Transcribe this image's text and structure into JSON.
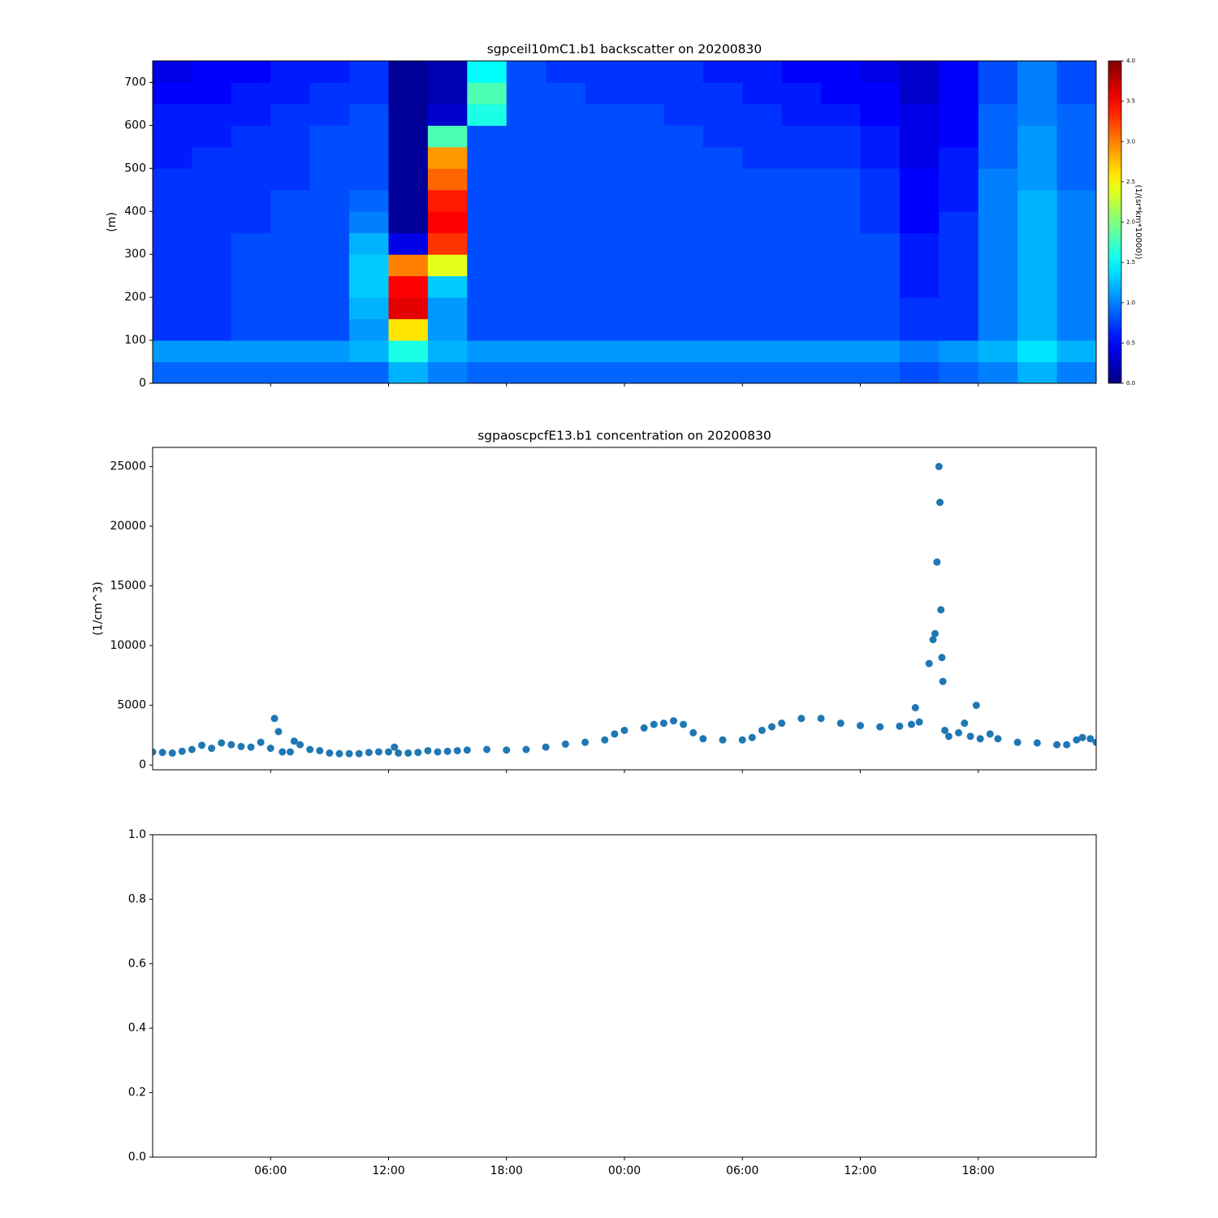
{
  "chart_data": [
    {
      "type": "heatmap",
      "title": "sgpceil10mC1.b1 backscatter on 20200830",
      "ylabel": "(m)",
      "colorbar_label": "(1/(sr*km*10000))",
      "colormap": "jet",
      "clim": [
        0,
        4
      ],
      "colorbar_ticks": [
        {
          "value": 0,
          "label": "0.0"
        },
        0.5,
        {
          "value": 1,
          "label": "1.0"
        },
        1.5,
        {
          "value": 2,
          "label": "2.0"
        },
        2.5,
        {
          "value": 3,
          "label": "3.0"
        },
        3.5,
        {
          "value": 4,
          "label": "4.0"
        }
      ],
      "xlim": [
        0,
        48
      ],
      "ylim": [
        0,
        750
      ],
      "yticks": [
        0,
        100,
        200,
        300,
        400,
        500,
        600,
        700
      ],
      "x_edges": [
        0,
        2,
        4,
        6,
        8,
        10,
        12,
        14,
        16,
        18,
        20,
        22,
        24,
        26,
        28,
        30,
        32,
        34,
        36,
        38,
        40,
        42,
        44,
        46,
        48
      ],
      "y_edges": [
        0,
        50,
        100,
        150,
        200,
        250,
        300,
        350,
        400,
        450,
        500,
        550,
        600,
        650,
        700,
        750
      ],
      "z": [
        [
          0.9,
          0.9,
          0.9,
          0.9,
          0.9,
          0.9,
          1.2,
          1.0,
          0.9,
          0.9,
          0.9,
          0.9,
          0.9,
          0.9,
          0.9,
          0.9,
          0.9,
          0.9,
          0.9,
          0.8,
          0.9,
          1.0,
          1.2,
          1.0
        ],
        [
          1.1,
          1.1,
          1.1,
          1.1,
          1.1,
          1.2,
          1.6,
          1.2,
          1.1,
          1.1,
          1.1,
          1.1,
          1.1,
          1.1,
          1.1,
          1.1,
          1.1,
          1.1,
          1.1,
          1.0,
          1.1,
          1.2,
          1.4,
          1.2
        ],
        [
          0.7,
          0.7,
          0.8,
          0.8,
          0.8,
          1.1,
          2.6,
          1.1,
          0.8,
          0.8,
          0.8,
          0.8,
          0.8,
          0.8,
          0.8,
          0.8,
          0.8,
          0.8,
          0.8,
          0.7,
          0.7,
          1.0,
          1.2,
          1.0
        ],
        [
          0.7,
          0.7,
          0.8,
          0.8,
          0.8,
          1.2,
          3.6,
          1.1,
          0.8,
          0.8,
          0.8,
          0.8,
          0.8,
          0.8,
          0.8,
          0.8,
          0.8,
          0.8,
          0.8,
          0.7,
          0.7,
          1.0,
          1.2,
          1.0
        ],
        [
          0.7,
          0.7,
          0.8,
          0.8,
          0.8,
          1.3,
          3.5,
          1.3,
          0.8,
          0.8,
          0.8,
          0.8,
          0.8,
          0.8,
          0.8,
          0.8,
          0.8,
          0.8,
          0.8,
          0.6,
          0.7,
          1.0,
          1.2,
          1.0
        ],
        [
          0.7,
          0.7,
          0.8,
          0.8,
          0.8,
          1.3,
          3.0,
          2.4,
          0.8,
          0.8,
          0.8,
          0.8,
          0.8,
          0.8,
          0.8,
          0.8,
          0.8,
          0.8,
          0.8,
          0.6,
          0.7,
          1.0,
          1.2,
          1.0
        ],
        [
          0.7,
          0.7,
          0.8,
          0.8,
          0.8,
          1.2,
          0.4,
          3.3,
          0.8,
          0.8,
          0.8,
          0.8,
          0.8,
          0.8,
          0.8,
          0.8,
          0.8,
          0.8,
          0.8,
          0.6,
          0.7,
          1.0,
          1.2,
          1.0
        ],
        [
          0.7,
          0.7,
          0.7,
          0.8,
          0.8,
          1.0,
          0.1,
          3.5,
          0.8,
          0.8,
          0.8,
          0.8,
          0.8,
          0.8,
          0.8,
          0.8,
          0.8,
          0.8,
          0.7,
          0.5,
          0.7,
          1.0,
          1.2,
          1.0
        ],
        [
          0.7,
          0.7,
          0.7,
          0.8,
          0.8,
          0.9,
          0.1,
          3.4,
          0.8,
          0.8,
          0.8,
          0.8,
          0.8,
          0.8,
          0.8,
          0.8,
          0.8,
          0.8,
          0.7,
          0.5,
          0.6,
          1.0,
          1.2,
          1.0
        ],
        [
          0.7,
          0.7,
          0.7,
          0.7,
          0.8,
          0.8,
          0.1,
          3.1,
          0.8,
          0.8,
          0.8,
          0.8,
          0.8,
          0.8,
          0.8,
          0.8,
          0.8,
          0.8,
          0.7,
          0.5,
          0.6,
          1.0,
          1.1,
          0.9
        ],
        [
          0.6,
          0.7,
          0.7,
          0.7,
          0.8,
          0.8,
          0.1,
          2.9,
          0.8,
          0.8,
          0.8,
          0.8,
          0.8,
          0.8,
          0.8,
          0.7,
          0.7,
          0.7,
          0.6,
          0.4,
          0.6,
          0.9,
          1.1,
          0.9
        ],
        [
          0.6,
          0.6,
          0.7,
          0.7,
          0.8,
          0.8,
          0.1,
          1.8,
          0.8,
          0.8,
          0.8,
          0.8,
          0.8,
          0.8,
          0.7,
          0.7,
          0.7,
          0.7,
          0.6,
          0.4,
          0.5,
          0.9,
          1.1,
          0.9
        ],
        [
          0.6,
          0.6,
          0.6,
          0.7,
          0.7,
          0.8,
          0.1,
          0.3,
          1.6,
          0.8,
          0.8,
          0.8,
          0.8,
          0.7,
          0.7,
          0.7,
          0.6,
          0.6,
          0.5,
          0.4,
          0.5,
          0.9,
          1.0,
          0.9
        ],
        [
          0.5,
          0.5,
          0.6,
          0.6,
          0.7,
          0.7,
          0.1,
          0.2,
          1.8,
          0.8,
          0.8,
          0.7,
          0.7,
          0.7,
          0.7,
          0.6,
          0.6,
          0.5,
          0.5,
          0.3,
          0.5,
          0.8,
          1.0,
          0.8
        ],
        [
          0.4,
          0.5,
          0.5,
          0.6,
          0.6,
          0.7,
          0.1,
          0.2,
          1.5,
          0.8,
          0.7,
          0.7,
          0.7,
          0.7,
          0.6,
          0.6,
          0.5,
          0.5,
          0.4,
          0.3,
          0.5,
          0.8,
          1.0,
          0.8
        ]
      ]
    },
    {
      "type": "scatter",
      "title": "sgpaoscpcfE13.b1 concentration on 20200830",
      "ylabel": "(1/cm^3)",
      "xlim": [
        0,
        48
      ],
      "ylim": [
        -400,
        26600
      ],
      "yticks": [
        0,
        5000,
        10000,
        15000,
        20000,
        25000
      ],
      "series": [
        {
          "color": "#1f77b4",
          "x": [
            0,
            0.5,
            1,
            1.5,
            2,
            2.5,
            3,
            3.5,
            4,
            4.5,
            5,
            5.5,
            6,
            6.2,
            6.4,
            6.6,
            7,
            7.2,
            7.5,
            8,
            8.5,
            9,
            9.5,
            10,
            10.5,
            11,
            11.5,
            12,
            12.3,
            12.5,
            13,
            13.5,
            14,
            14.5,
            15,
            15.5,
            16,
            17,
            18,
            19,
            20,
            21,
            22,
            23,
            23.5,
            24,
            25,
            25.5,
            26,
            26.5,
            27,
            27.5,
            28,
            29,
            30,
            30.5,
            31,
            31.5,
            32,
            33,
            34,
            35,
            36,
            37,
            38,
            38.6,
            38.8,
            39,
            39.5,
            39.7,
            39.8,
            39.9,
            40,
            40.05,
            40.1,
            40.15,
            40.2,
            40.3,
            40.5,
            41,
            41.3,
            41.6,
            41.9,
            42.1,
            42.6,
            43,
            44,
            45,
            46,
            46.5,
            47,
            47.3,
            47.7,
            48
          ],
          "values": [
            1100,
            1050,
            1000,
            1150,
            1300,
            1650,
            1400,
            1850,
            1700,
            1550,
            1500,
            1900,
            1400,
            3900,
            2800,
            1100,
            1100,
            2000,
            1700,
            1300,
            1200,
            1000,
            950,
            950,
            950,
            1050,
            1100,
            1100,
            1500,
            1000,
            1000,
            1050,
            1200,
            1100,
            1150,
            1200,
            1250,
            1300,
            1250,
            1300,
            1500,
            1750,
            1900,
            2100,
            2600,
            2900,
            3100,
            3400,
            3500,
            3700,
            3400,
            2700,
            2200,
            2100,
            2100,
            2300,
            2900,
            3200,
            3500,
            3900,
            3900,
            3500,
            3300,
            3200,
            3250,
            3400,
            4800,
            3600,
            8500,
            10500,
            11000,
            17000,
            25000,
            22000,
            13000,
            9000,
            7000,
            2900,
            2400,
            2700,
            3500,
            2400,
            5000,
            2200,
            2600,
            2200,
            1900,
            1850,
            1700,
            1700,
            2100,
            2300,
            2200,
            1900
          ]
        }
      ]
    },
    {
      "type": "line",
      "xlim": [
        0,
        48
      ],
      "ylim": [
        0,
        1
      ],
      "yticks": [
        {
          "value": 0,
          "label": "0.0"
        },
        0.2,
        0.4,
        0.6,
        0.8,
        {
          "value": 1,
          "label": "1.0"
        }
      ],
      "xticks": [
        {
          "value": 6,
          "label": "06:00"
        },
        {
          "value": 12,
          "label": "12:00"
        },
        {
          "value": 18,
          "label": "18:00"
        },
        {
          "value": 24,
          "label": "00:00"
        },
        {
          "value": 30,
          "label": "06:00"
        },
        {
          "value": 36,
          "label": "12:00"
        },
        {
          "value": 42,
          "label": "18:00"
        }
      ],
      "series": []
    }
  ]
}
